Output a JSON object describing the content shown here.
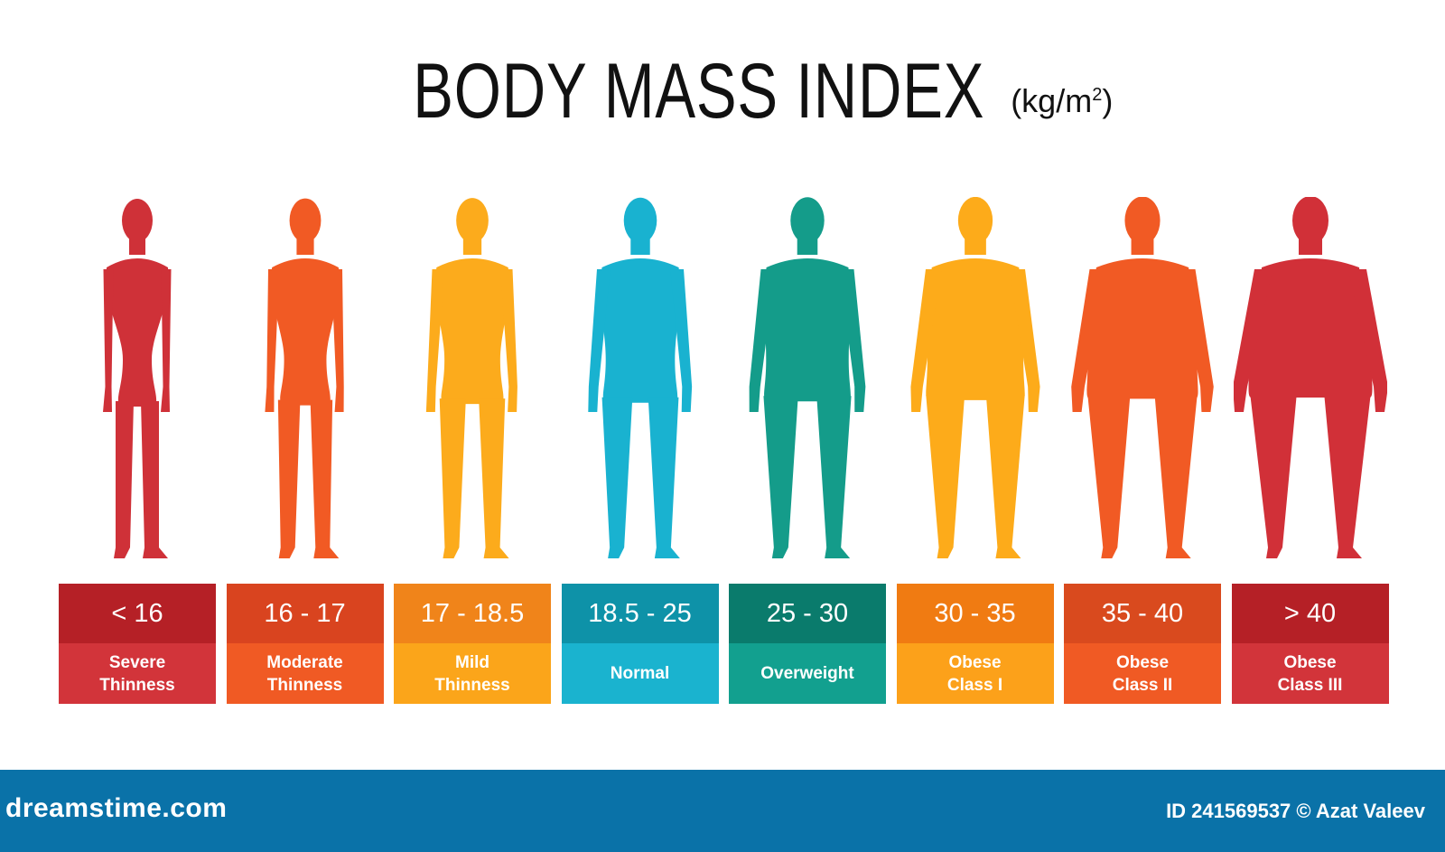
{
  "header": {
    "title": "BODY MASS INDEX",
    "unit_base": "(kg/m",
    "unit_sup": "2",
    "unit_close": ")"
  },
  "categories": [
    {
      "range": "< 16",
      "label": "Severe\nThinness",
      "top": "#b52026",
      "bottom": "#d2343a",
      "body": "#cf3138",
      "build": 0
    },
    {
      "range": "16 - 17",
      "label": "Moderate\nThinness",
      "top": "#d9441f",
      "bottom": "#f05a24",
      "body": "#f15a24",
      "build": 1
    },
    {
      "range": "17 - 18.5",
      "label": "Mild\nThinness",
      "top": "#f0841a",
      "bottom": "#fba51a",
      "body": "#fcab1c",
      "build": 2
    },
    {
      "range": "18.5 - 25",
      "label": "Normal",
      "top": "#0e92a8",
      "bottom": "#1ab3cf",
      "body": "#19b2d0",
      "build": 3
    },
    {
      "range": "25 - 30",
      "label": "Overweight",
      "top": "#0a7b6c",
      "bottom": "#12a08f",
      "body": "#149c8a",
      "build": 4
    },
    {
      "range": "30 - 35",
      "label": "Obese\nClass I",
      "top": "#f07b12",
      "bottom": "#fca11a",
      "body": "#fdab1a",
      "build": 5
    },
    {
      "range": "35 - 40",
      "label": "Obese\nClass II",
      "top": "#d94a1e",
      "bottom": "#f05a24",
      "body": "#f15a24",
      "build": 6
    },
    {
      "range": "> 40",
      "label": "Obese\nClass III",
      "top": "#b52026",
      "bottom": "#d2343a",
      "body": "#d13038",
      "build": 7
    }
  ],
  "footer": {
    "brand": "dreamstime.com",
    "credit": "ID 241569537 © Azat Valeev"
  }
}
